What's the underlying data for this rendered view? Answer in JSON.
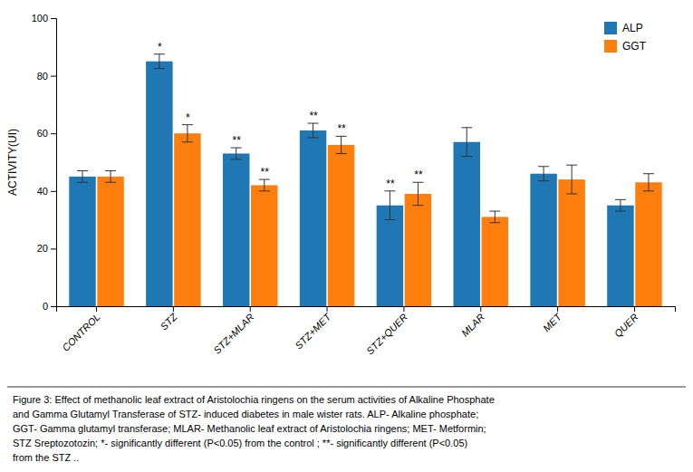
{
  "chart_data": {
    "type": "bar",
    "categories": [
      "CONTROL",
      "STZ",
      "STZ+MLAR",
      "STZ+MET",
      "STZ+QUER",
      "MLAR",
      "MET",
      "QUER"
    ],
    "series": [
      {
        "name": "ALP",
        "values": [
          45,
          85,
          53,
          61,
          35,
          57,
          46,
          35
        ],
        "errors": [
          2,
          2.5,
          2,
          2.5,
          5,
          5,
          2.5,
          2
        ],
        "significance": [
          null,
          "*",
          "**",
          "**",
          "**",
          null,
          null,
          null
        ]
      },
      {
        "name": "GGT",
        "values": [
          45,
          60,
          42,
          56,
          39,
          31,
          44,
          43
        ],
        "errors": [
          2,
          3,
          2,
          3,
          4,
          2,
          5,
          3
        ],
        "significance": [
          null,
          "*",
          "**",
          "**",
          "**",
          null,
          null,
          null
        ]
      }
    ],
    "ylabel": "ACTIVITY(UI)",
    "ylim": [
      0,
      100
    ],
    "yticks": [
      0,
      20,
      40,
      60,
      80,
      100
    ],
    "grid": false,
    "legend": "upper right",
    "annotations": [
      "Figure 3:  Effect of methanolic leaf extract of Aristolochia ringens on the serum activities of Alkaline Phosphate",
      "and Gamma Glutamyl Transferase of STZ- induced diabetes in male wister rats. ALP- Alkaline phosphate;",
      "GGT- Gamma glutamyl transferase; MLAR- Methanolic leaf extract of Aristolochia ringens; MET- Metformin;",
      "STZ  Sreptozotozin; *- significantly different (P<0.05) from the control ; **- significantly different (P<0.05)",
      "from the STZ .."
    ]
  }
}
